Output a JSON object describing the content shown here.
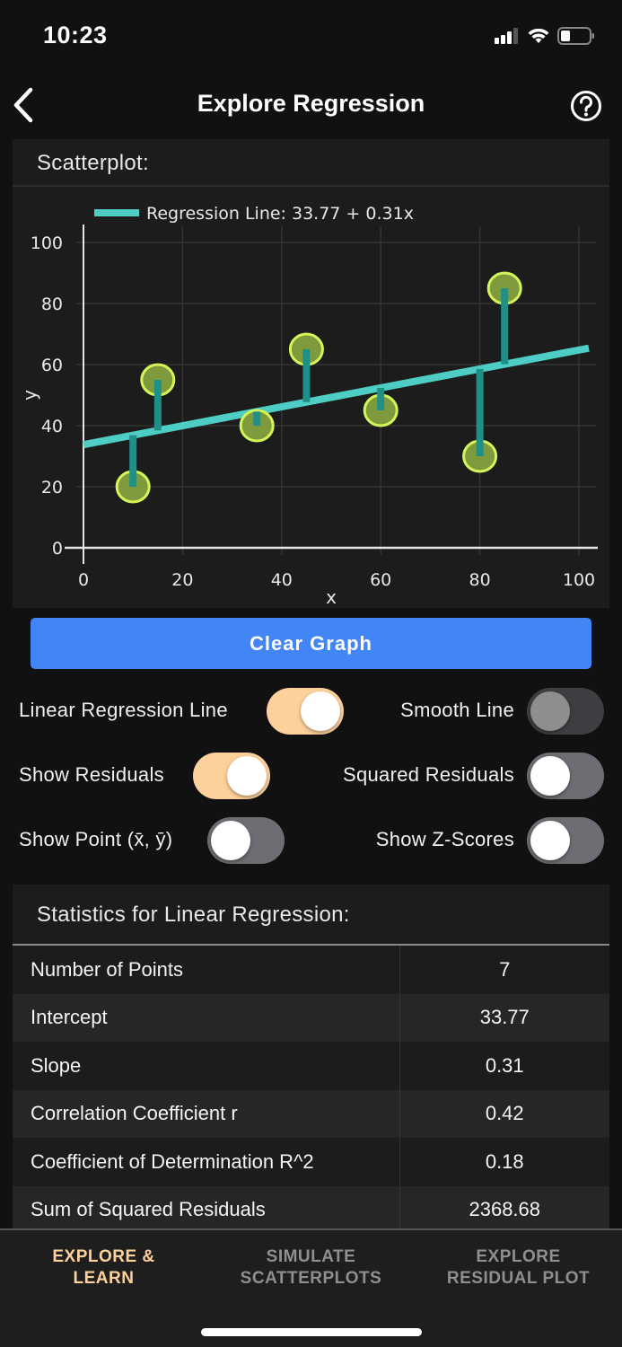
{
  "status_bar": {
    "time": "10:23",
    "icons": [
      "cellular-signal-icon",
      "wifi-icon",
      "battery-icon"
    ]
  },
  "nav": {
    "back_icon": "chevron-left-icon",
    "title": "Explore Regression",
    "help_icon": "question-circle-icon"
  },
  "scatter_card": {
    "title": "Scatterplot:"
  },
  "chart_data": {
    "type": "scatter",
    "title": "",
    "legend": [
      {
        "label": "Regression Line: 33.77 + 0.31x",
        "color": "#4ecdc4"
      }
    ],
    "xlabel": "x",
    "ylabel": "y",
    "xlim": [
      0,
      100
    ],
    "ylim": [
      0,
      100
    ],
    "x_ticks": [
      0,
      20,
      40,
      60,
      80,
      100
    ],
    "y_ticks": [
      0,
      20,
      40,
      60,
      80,
      100
    ],
    "grid": true,
    "points": [
      {
        "x": 10,
        "y": 20
      },
      {
        "x": 15,
        "y": 55
      },
      {
        "x": 35,
        "y": 40
      },
      {
        "x": 45,
        "y": 65
      },
      {
        "x": 60,
        "y": 45
      },
      {
        "x": 80,
        "y": 30
      },
      {
        "x": 85,
        "y": 85
      }
    ],
    "regression_line": {
      "intercept": 33.77,
      "slope": 0.31
    },
    "show_residuals": true,
    "colors": {
      "point_fill": "#7f9a3c",
      "point_stroke": "#d4f55a",
      "line": "#4ecdc4",
      "residual": "#1f9088"
    }
  },
  "clear_button": {
    "label": "Clear Graph",
    "color": "#4285f4"
  },
  "toggles": [
    {
      "label": "Linear Regression Line",
      "state": "on"
    },
    {
      "label": "Smooth Line",
      "state": "disabled"
    },
    {
      "label": "Show Residuals",
      "state": "on"
    },
    {
      "label": "Squared Residuals",
      "state": "off"
    },
    {
      "label": "Show Point (x̄, ȳ)",
      "state": "off"
    },
    {
      "label": "Show Z-Scores",
      "state": "off"
    }
  ],
  "stats": {
    "title": "Statistics for Linear Regression:",
    "rows": [
      {
        "label": "Number of Points",
        "value": "7"
      },
      {
        "label": "Intercept",
        "value": "33.77"
      },
      {
        "label": "Slope",
        "value": "0.31"
      },
      {
        "label": "Correlation Coefficient r",
        "value": "0.42"
      },
      {
        "label": "Coefficient of Determination R^2",
        "value": "0.18"
      },
      {
        "label": "Sum of Squared Residuals",
        "value": "2368.68"
      }
    ]
  },
  "tabs": [
    {
      "line1": "EXPLORE &",
      "line2": "LEARN",
      "active": true
    },
    {
      "line1": "SIMULATE",
      "line2": "SCATTERPLOTS",
      "active": false
    },
    {
      "line1": "EXPLORE",
      "line2": "RESIDUAL PLOT",
      "active": false
    }
  ],
  "accent_color": "#fdd19b"
}
